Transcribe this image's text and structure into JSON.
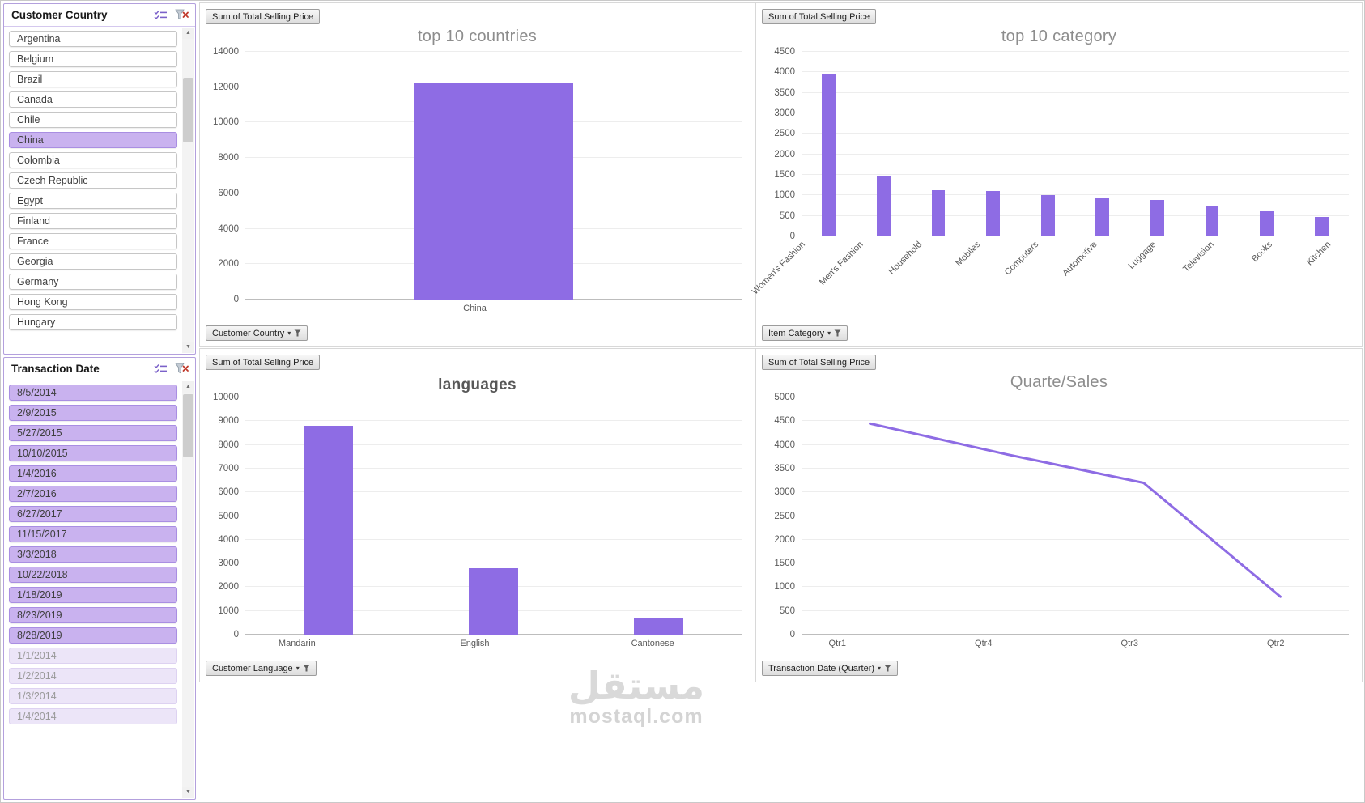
{
  "colors": {
    "accent": "#8e6ce4",
    "selected_fill": "#c9b2ef",
    "selected_border": "#a98ee2",
    "clear_filter_x": "#c0392b"
  },
  "watermark": {
    "arabic": "مستقل",
    "latin": "mostaql.com"
  },
  "slicers": {
    "country": {
      "title": "Customer Country",
      "items": [
        {
          "label": "Argentina",
          "state": "normal"
        },
        {
          "label": "Belgium",
          "state": "normal"
        },
        {
          "label": "Brazil",
          "state": "normal"
        },
        {
          "label": "Canada",
          "state": "normal"
        },
        {
          "label": "Chile",
          "state": "normal"
        },
        {
          "label": "China",
          "state": "selected"
        },
        {
          "label": "Colombia",
          "state": "normal"
        },
        {
          "label": "Czech Republic",
          "state": "normal"
        },
        {
          "label": "Egypt",
          "state": "normal"
        },
        {
          "label": "Finland",
          "state": "normal"
        },
        {
          "label": "France",
          "state": "normal"
        },
        {
          "label": "Georgia",
          "state": "normal"
        },
        {
          "label": "Germany",
          "state": "normal"
        },
        {
          "label": "Hong Kong",
          "state": "normal"
        },
        {
          "label": "Hungary",
          "state": "normal"
        }
      ]
    },
    "date": {
      "title": "Transaction Date",
      "items": [
        {
          "label": "8/5/2014",
          "state": "selected"
        },
        {
          "label": "2/9/2015",
          "state": "selected"
        },
        {
          "label": "5/27/2015",
          "state": "selected"
        },
        {
          "label": "10/10/2015",
          "state": "selected"
        },
        {
          "label": "1/4/2016",
          "state": "selected"
        },
        {
          "label": "2/7/2016",
          "state": "selected"
        },
        {
          "label": "6/27/2017",
          "state": "selected"
        },
        {
          "label": "11/15/2017",
          "state": "selected"
        },
        {
          "label": "3/3/2018",
          "state": "selected"
        },
        {
          "label": "10/22/2018",
          "state": "selected"
        },
        {
          "label": "1/18/2019",
          "state": "selected"
        },
        {
          "label": "8/23/2019",
          "state": "selected"
        },
        {
          "label": "8/28/2019",
          "state": "selected"
        },
        {
          "label": "1/1/2014",
          "state": "disabled"
        },
        {
          "label": "1/2/2014",
          "state": "disabled"
        },
        {
          "label": "1/3/2014",
          "state": "disabled"
        },
        {
          "label": "1/4/2014",
          "state": "disabled"
        }
      ]
    }
  },
  "chart_data": [
    {
      "type": "bar",
      "title": "top 10 countries",
      "categories": [
        "China"
      ],
      "values": [
        12200
      ],
      "ylim": [
        0,
        14000
      ],
      "ytick_step": 2000,
      "grid": true,
      "legend_position": "none",
      "value_button": "Sum of Total Selling Price",
      "filter_button": "Customer Country"
    },
    {
      "type": "bar",
      "title": "top 10 category",
      "categories": [
        "Women's Fashion",
        "Men's Fashion",
        "Household",
        "Mobiles",
        "Computers",
        "Automotive",
        "Luggage",
        "Television",
        "Books",
        "Kitchen"
      ],
      "values": [
        3950,
        1480,
        1130,
        1100,
        1000,
        950,
        880,
        750,
        620,
        480
      ],
      "ylim": [
        0,
        4500
      ],
      "ytick_step": 500,
      "grid": true,
      "legend_position": "none",
      "label_rotation": -45,
      "value_button": "Sum of Total Selling Price",
      "filter_button": "Item Category"
    },
    {
      "type": "bar",
      "title": "languages",
      "categories": [
        "Mandarin",
        "English",
        "Cantonese"
      ],
      "values": [
        8800,
        2800,
        700
      ],
      "ylim": [
        0,
        10000
      ],
      "ytick_step": 1000,
      "grid": true,
      "legend_position": "none",
      "value_button": "Sum of Total Selling Price",
      "filter_button": "Customer Language"
    },
    {
      "type": "line",
      "title": "Quarte/Sales",
      "categories": [
        "Qtr1",
        "Qtr4",
        "Qtr3",
        "Qtr2"
      ],
      "values": [
        4450,
        3800,
        3200,
        800
      ],
      "ylim": [
        0,
        5000
      ],
      "ytick_step": 500,
      "grid": true,
      "legend_position": "none",
      "value_button": "Sum of Total Selling Price",
      "filter_button": "Transaction Date (Quarter)"
    }
  ]
}
